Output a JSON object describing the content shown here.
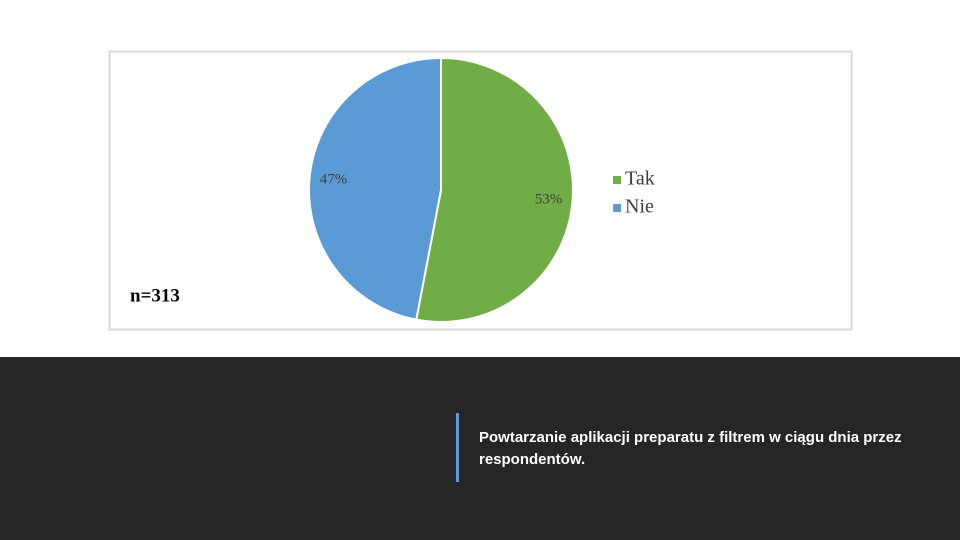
{
  "chart_data": {
    "type": "pie",
    "categories": [
      "Tak",
      "Nie"
    ],
    "values": [
      53,
      47
    ],
    "value_labels": [
      "53%",
      "47%"
    ],
    "colors": [
      "#70ad47",
      "#5b9bd5"
    ],
    "annotation": "n=313",
    "legend": "right"
  },
  "caption": "Powtarzanie aplikacji preparatu z filtrem w ciągu dnia przez respondentów."
}
